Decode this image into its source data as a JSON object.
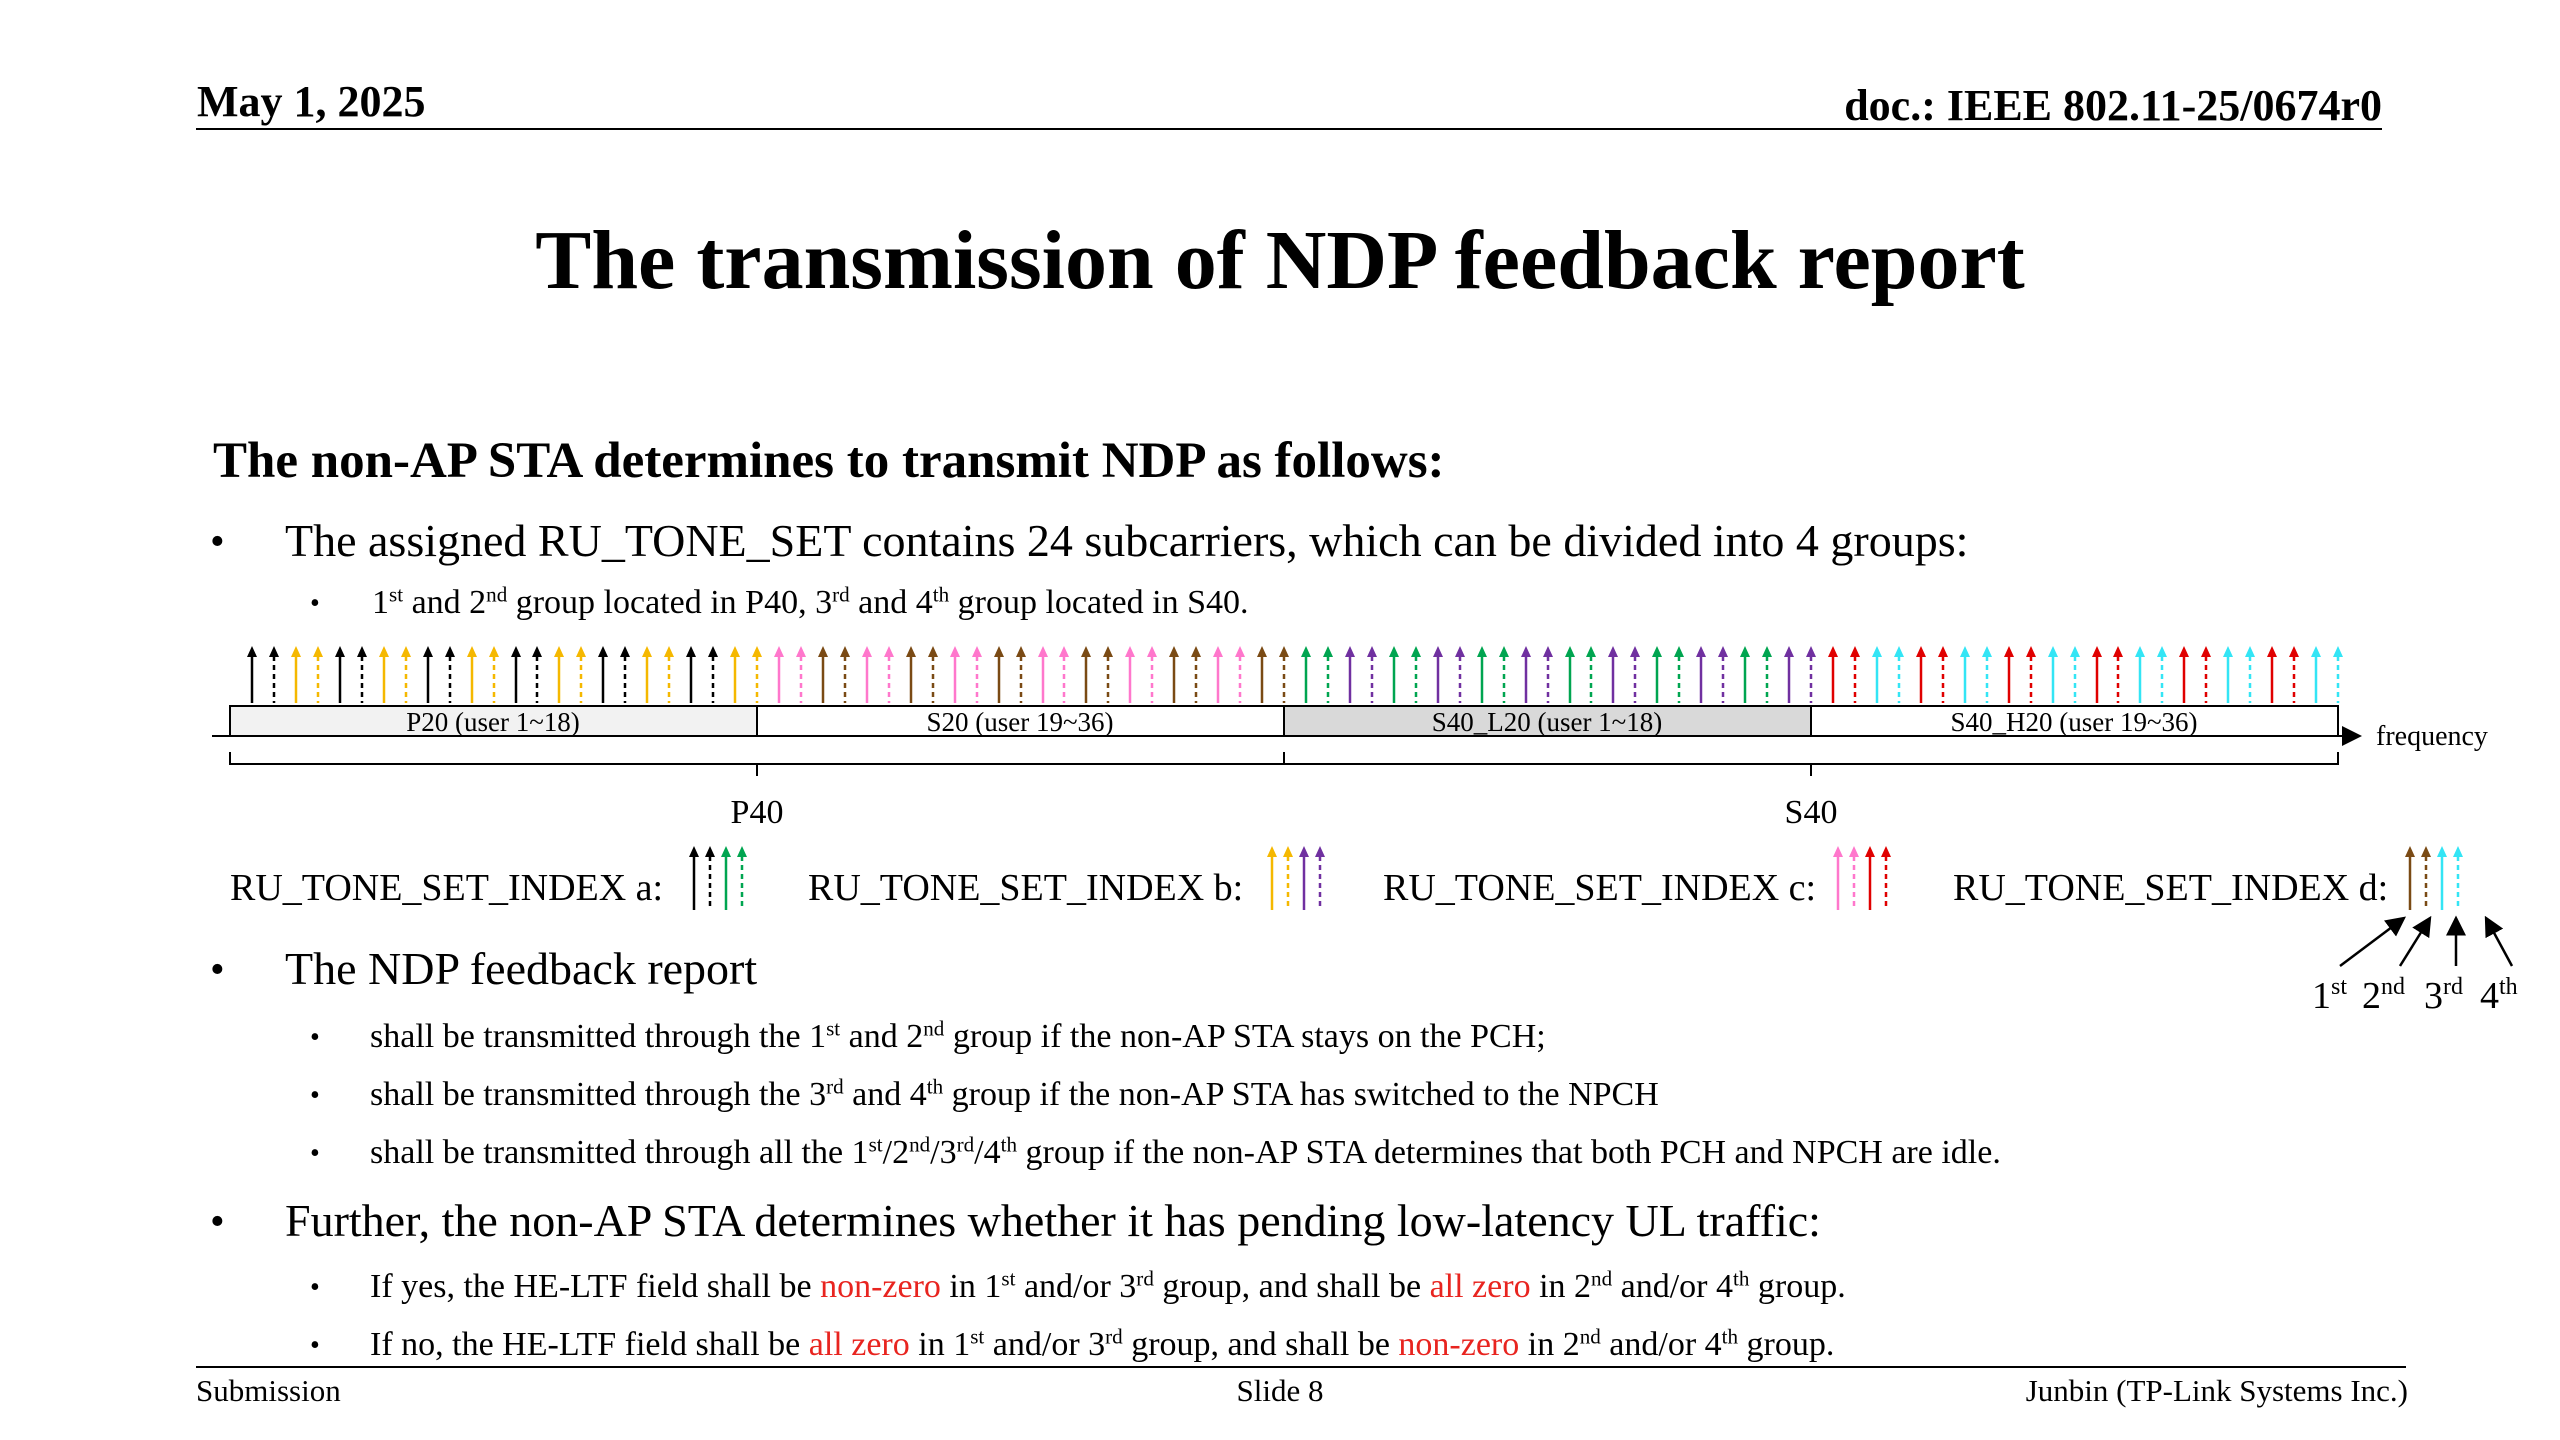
{
  "header": {
    "date": "May 1, 2025",
    "doc": "doc.: IEEE 802.11-25/0674r0"
  },
  "title": "The transmission of NDP feedback report",
  "subheading": "The non-AP STA determines to transmit NDP as follows:",
  "bullets": {
    "b1": "The assigned RU_TONE_SET contains 24 subcarriers, which can be divided into 4 groups:",
    "b1_sub": {
      "p1": "1",
      "s1": "st",
      "p2": " and 2",
      "s2": "nd",
      "p3": " group located in P40, 3",
      "s3": "rd",
      "p4": " and 4",
      "s4": "th",
      "p5": " group located in S40."
    },
    "b2": "The NDP feedback report",
    "b2_sub1": {
      "p1": "shall be transmitted through the 1",
      "s1": "st",
      "p2": " and 2",
      "s2": "nd",
      "p3": " group if the non-AP STA stays on the PCH;"
    },
    "b2_sub2": {
      "p1": "shall be transmitted through the 3",
      "s1": "rd",
      "p2": " and 4",
      "s2": "th",
      "p3": " group if the non-AP STA has switched to the NPCH"
    },
    "b2_sub3": {
      "p1": "shall be transmitted through all the 1",
      "s1": "st",
      "p2": "/2",
      "s2": "nd",
      "p3": "/3",
      "s3": "rd",
      "p4": "/4",
      "s4": "th",
      "p5": " group if the non-AP STA determines that both PCH and NPCH are idle."
    },
    "b3": "Further, the non-AP STA determines whether it has pending low-latency UL traffic:",
    "b3_sub1": {
      "p1": "If yes, the HE-LTF field shall be ",
      "r1": "non-zero",
      "p2": " in 1",
      "s1": "st",
      "p3": " and/or 3",
      "s2": "rd",
      "p4": " group, and shall be ",
      "r2": "all zero",
      "p5": " in 2",
      "s3": "nd",
      "p6": " and/or 4",
      "s4": "th",
      "p7": " group."
    },
    "b3_sub2": {
      "p1": "If no, the HE-LTF field shall be ",
      "r1": "all zero",
      "p2": " in 1",
      "s1": "st",
      "p3": " and/or 3",
      "s2": "rd",
      "p4": " group, and shall be ",
      "r2": "non-zero",
      "p5": " in 2",
      "s3": "nd",
      "p6": " and/or 4",
      "s4": "th",
      "p7": " group."
    }
  },
  "bullet_symbol": "•",
  "diagram": {
    "channels": [
      "P20 (user 1~18)",
      "S20 (user 19~36)",
      "S40_L20 (user 1~18)",
      "S40_H20 (user 19~36)"
    ],
    "axis_label": "frequency",
    "brace_labels": [
      "P40",
      "S40"
    ],
    "index_labels": [
      "RU_TONE_SET_INDEX a:",
      "RU_TONE_SET_INDEX b:",
      "RU_TONE_SET_INDEX c:",
      "RU_TONE_SET_INDEX d:"
    ],
    "group_labels": [
      {
        "n": "1",
        "s": "st"
      },
      {
        "n": "2",
        "s": "nd"
      },
      {
        "n": "3",
        "s": "rd"
      },
      {
        "n": "4",
        "s": "th"
      }
    ],
    "colors": {
      "black": "#000000",
      "yellow": "#f5b800",
      "green": "#00a550",
      "purple": "#7030a0",
      "pink": "#ff77cc",
      "red": "#e00000",
      "brown": "#7a4a14",
      "cyan": "#33e5f5",
      "channel_gray": "#d9d9d9",
      "channel_light": "#f2f2f2"
    },
    "index_colors": {
      "a": [
        "black",
        "black",
        "green",
        "green"
      ],
      "b": [
        "yellow",
        "yellow",
        "purple",
        "purple"
      ],
      "c": [
        "pink",
        "pink",
        "red",
        "red"
      ],
      "d": [
        "brown",
        "brown",
        "cyan",
        "cyan"
      ]
    }
  },
  "footer": {
    "left": "Submission",
    "center": "Slide 8",
    "right": "Junbin (TP-Link Systems Inc.)"
  }
}
